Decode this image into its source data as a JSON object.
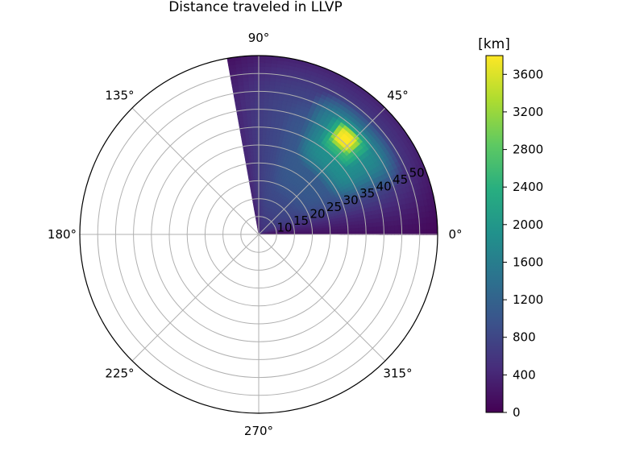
{
  "chart_data": {
    "type": "heatmap",
    "projection": "polar",
    "title": "Distance traveled in LLVP",
    "theta_ticks": [
      "0°",
      "45°",
      "90°",
      "135°",
      "180°",
      "225°",
      "270°",
      "315°"
    ],
    "theta_tick_values": [
      0,
      45,
      90,
      135,
      180,
      225,
      270,
      315
    ],
    "r_ticks": [
      "10",
      "15",
      "20",
      "25",
      "30",
      "35",
      "40",
      "45",
      "50"
    ],
    "r_tick_values": [
      10,
      15,
      20,
      25,
      30,
      35,
      40,
      45,
      50
    ],
    "rlim": [
      5,
      55
    ],
    "theta_extent": [
      0,
      100
    ],
    "grid": true,
    "colormap": "viridis",
    "colorbar": {
      "label": "[km]",
      "ticks": [
        "0",
        "400",
        "800",
        "1200",
        "1600",
        "2000",
        "2400",
        "2800",
        "3200",
        "3600"
      ],
      "tick_values": [
        0,
        400,
        800,
        1200,
        1600,
        2000,
        2400,
        2800,
        3200,
        3600
      ],
      "vmin": 0,
      "vmax": 3800
    },
    "field": {
      "background_value": 80,
      "blobs": [
        {
          "theta_center": 55,
          "theta_halfwidth": 48,
          "r_center": 29,
          "r_halfwidth": 27,
          "value": 900
        },
        {
          "theta_center": 50,
          "theta_halfwidth": 40,
          "r_center": 31,
          "r_halfwidth": 20,
          "value": 1100
        },
        {
          "theta_center": 45,
          "theta_halfwidth": 26,
          "r_center": 38,
          "r_halfwidth": 12,
          "value": 1900
        },
        {
          "theta_center": 47,
          "theta_halfwidth": 14,
          "r_center": 40,
          "r_halfwidth": 7,
          "value": 2600
        },
        {
          "theta_center": 48,
          "theta_halfwidth": 8,
          "r_center": 41,
          "r_halfwidth": 4,
          "value": 3800
        }
      ]
    }
  }
}
